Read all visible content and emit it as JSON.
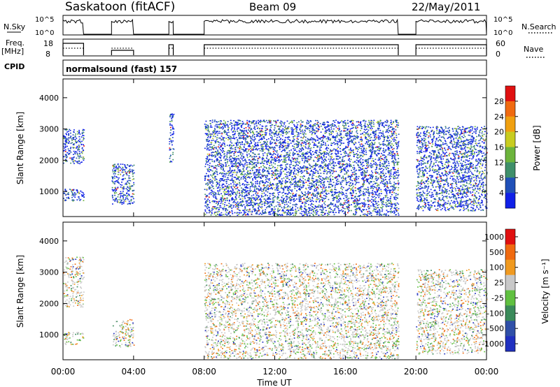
{
  "header": {
    "station": "Saskatoon (fitACF)",
    "beam": "Beam 09",
    "date": "22/May/2011"
  },
  "strips": {
    "nsky_label": "N.Sky",
    "nsky_ticks": [
      "10^5",
      "10^0"
    ],
    "nsearch_label": "N.Search",
    "nsearch_ticks": [
      "10^5",
      "10^0"
    ],
    "freq_label": "Freq.",
    "freq_unit": "[MHz]",
    "freq_ticks": [
      "18",
      "8"
    ],
    "nave_label": "Nave",
    "nave_ticks": [
      "60",
      "0"
    ],
    "cpid_label": "CPID",
    "cpid_value": "normalsound (fast) 157"
  },
  "chart_data": [
    {
      "type": "heatmap",
      "title": "Power",
      "ylabel": "Slant Range [km]",
      "yticks": [
        "1000",
        "2000",
        "3000",
        "4000"
      ],
      "ylim": [
        200,
        4600
      ],
      "colorbar_label": "Power [dB]",
      "colorbar_ticks": [
        "4",
        "8",
        "12",
        "16",
        "20",
        "24",
        "28"
      ],
      "colorbar_colors": [
        "#1020e8",
        "#2050b8",
        "#3f8f6a",
        "#6cb43c",
        "#c8cc20",
        "#f0a010",
        "#f06a10",
        "#e01010"
      ],
      "data_windows": [
        {
          "from": "00:00",
          "to": "01:10",
          "ranges": [
            [
              700,
              1100
            ],
            [
              1900,
              3000
            ]
          ]
        },
        {
          "from": "02:45",
          "to": "04:00",
          "ranges": [
            [
              600,
              1900
            ]
          ]
        },
        {
          "from": "06:00",
          "to": "06:15",
          "ranges": [
            [
              1900,
              3500
            ]
          ]
        },
        {
          "from": "08:00",
          "to": "19:00",
          "ranges": [
            [
              250,
              3300
            ]
          ]
        },
        {
          "from": "20:00",
          "to": "24:00",
          "ranges": [
            [
              400,
              3100
            ]
          ]
        }
      ]
    },
    {
      "type": "heatmap",
      "title": "Velocity",
      "ylabel": "Slant Range [km]",
      "yticks": [
        "1000",
        "2000",
        "3000",
        "4000"
      ],
      "ylim": [
        200,
        4600
      ],
      "xlabel": "Time UT",
      "xticks": [
        "00:00",
        "04:00",
        "08:00",
        "12:00",
        "16:00",
        "20:00",
        "00:00"
      ],
      "colorbar_label": "Velocity [m s⁻¹]",
      "colorbar_ticks": [
        "1000",
        "500",
        "100",
        "25",
        "-25",
        "-100",
        "-500",
        "-1000"
      ],
      "colorbar_colors": [
        "#2030c0",
        "#3050a8",
        "#3a8a5a",
        "#60c040",
        "#c8c8c8",
        "#f09a20",
        "#f06a10",
        "#e01010"
      ],
      "data_windows": [
        {
          "from": "00:00",
          "to": "01:10",
          "ranges": [
            [
              700,
              1100
            ],
            [
              1900,
              3500
            ]
          ]
        },
        {
          "from": "02:45",
          "to": "04:00",
          "ranges": [
            [
              600,
              1500
            ]
          ]
        },
        {
          "from": "08:00",
          "to": "19:00",
          "ranges": [
            [
              250,
              3300
            ]
          ]
        },
        {
          "from": "20:00",
          "to": "24:00",
          "ranges": [
            [
              400,
              3100
            ]
          ]
        }
      ]
    }
  ]
}
